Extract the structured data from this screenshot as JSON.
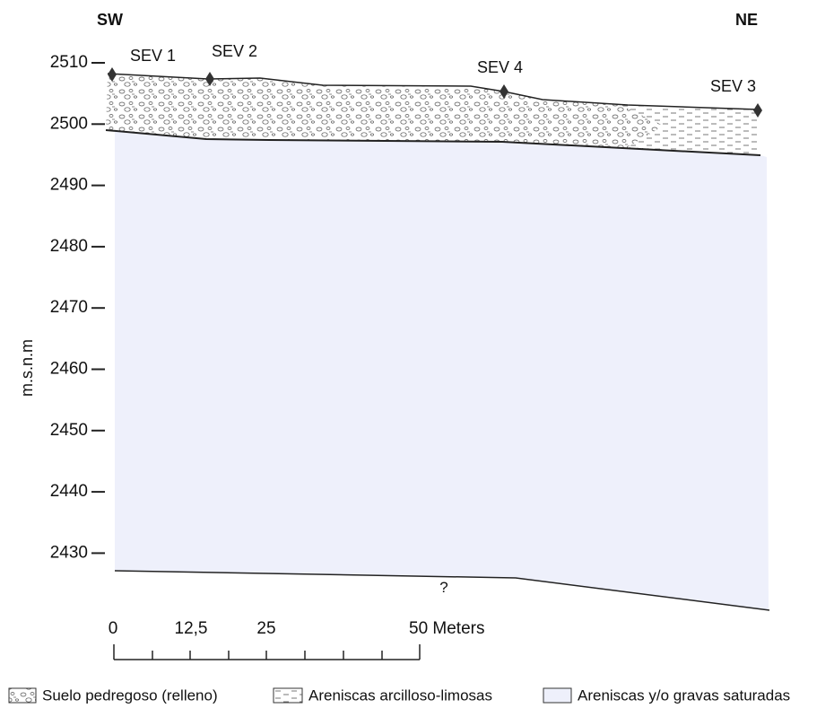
{
  "orientation": {
    "left": "SW",
    "right": "NE"
  },
  "y_axis": {
    "label": "m.s.n.m",
    "ticks": [
      "2510",
      "2500",
      "2490",
      "2480",
      "2470",
      "2460",
      "2450",
      "2440",
      "2430"
    ]
  },
  "stations": [
    {
      "label": "SEV 1"
    },
    {
      "label": "SEV 2"
    },
    {
      "label": "SEV 4"
    },
    {
      "label": "SEV 3"
    }
  ],
  "unknown_marker": "?",
  "scale_bar": {
    "labels": [
      "0",
      "12,5",
      "25",
      "50 Meters"
    ]
  },
  "legend": [
    "Suelo pedregoso (relleno)",
    "Areniscas arcilloso-limosas",
    "Areniscas y/o gravas saturadas"
  ]
}
